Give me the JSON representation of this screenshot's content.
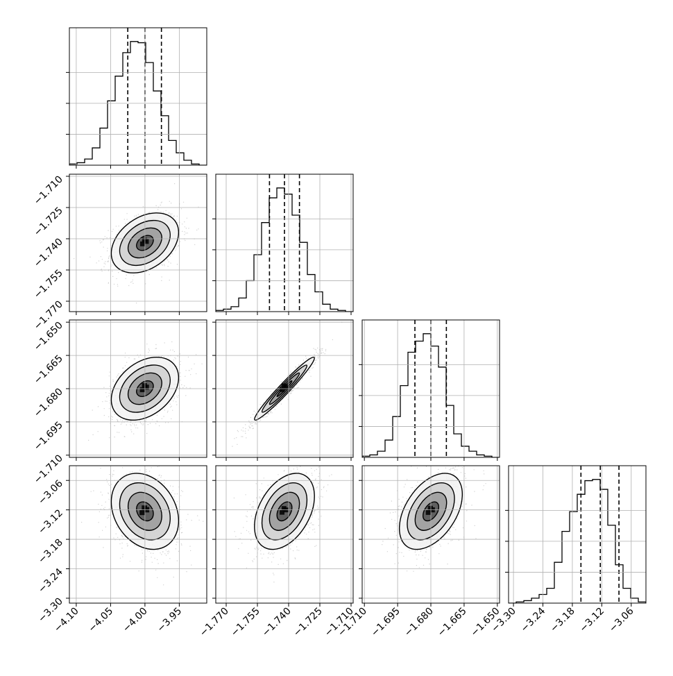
{
  "chart_data": {
    "type": "corner",
    "dimensions": 4,
    "grid": true,
    "colors": {
      "line": "#000000",
      "grid": "#b0b0b0",
      "points": "#000000",
      "background": "#ffffff"
    },
    "parameters": [
      {
        "range": [
          -4.11,
          -3.91
        ],
        "ticks": [
          -4.1,
          -4.05,
          -4.0,
          -3.95
        ],
        "tick_labels": [
          "−4.10",
          "−4.05",
          "−4.00",
          "−3.95"
        ],
        "quantiles": [
          -4.025,
          -4.0,
          -3.976
        ],
        "histogram": [
          0.01,
          0.02,
          0.05,
          0.14,
          0.3,
          0.52,
          0.72,
          0.91,
          1.0,
          0.99,
          0.83,
          0.6,
          0.4,
          0.2,
          0.1,
          0.04,
          0.01,
          0.0
        ]
      },
      {
        "range": [
          -1.775,
          -1.709
        ],
        "ticks": [
          -1.77,
          -1.755,
          -1.74,
          -1.725,
          -1.71
        ],
        "tick_labels": [
          "−1.770",
          "−1.755",
          "−1.740",
          "−1.725",
          "−1.710"
        ],
        "quantiles": [
          -1.7492,
          -1.742,
          -1.7348
        ],
        "histogram": [
          0.01,
          0.02,
          0.04,
          0.11,
          0.25,
          0.46,
          0.72,
          0.92,
          1.0,
          0.95,
          0.78,
          0.56,
          0.3,
          0.16,
          0.06,
          0.02,
          0.01,
          0.0
        ]
      },
      {
        "range": [
          -1.711,
          -1.649
        ],
        "ticks": [
          -1.71,
          -1.695,
          -1.68,
          -1.665,
          -1.65
        ],
        "tick_labels": [
          "−1.710",
          "−1.695",
          "−1.680",
          "−1.665",
          "−1.650"
        ],
        "quantiles": [
          -1.6872,
          -1.68,
          -1.673
        ],
        "histogram": [
          0.01,
          0.02,
          0.05,
          0.14,
          0.33,
          0.58,
          0.85,
          0.94,
          1.0,
          0.9,
          0.73,
          0.42,
          0.19,
          0.09,
          0.05,
          0.02,
          0.01,
          0.0
        ]
      },
      {
        "range": [
          -3.31,
          -3.03
        ],
        "ticks": [
          -3.3,
          -3.24,
          -3.18,
          -3.12,
          -3.06
        ],
        "tick_labels": [
          "−3.30",
          "−3.24",
          "−3.18",
          "−3.12",
          "−3.06"
        ],
        "quantiles": [
          -3.1625,
          -3.123,
          -3.085
        ],
        "histogram": [
          0.0,
          0.01,
          0.02,
          0.04,
          0.07,
          0.12,
          0.33,
          0.58,
          0.74,
          0.88,
          0.99,
          1.0,
          0.92,
          0.63,
          0.31,
          0.12,
          0.04,
          0.01
        ]
      }
    ],
    "pairs": [
      {
        "x": 0,
        "y": 1,
        "correlation": 0.35
      },
      {
        "x": 0,
        "y": 2,
        "correlation": 0.35
      },
      {
        "x": 1,
        "y": 2,
        "correlation": 0.97
      },
      {
        "x": 0,
        "y": 3,
        "correlation": -0.25
      },
      {
        "x": 1,
        "y": 3,
        "correlation": 0.4
      },
      {
        "x": 2,
        "y": 3,
        "correlation": 0.45
      }
    ],
    "contour_levels_sigma": [
      0.5,
      1.0,
      1.5,
      2.0
    ]
  }
}
